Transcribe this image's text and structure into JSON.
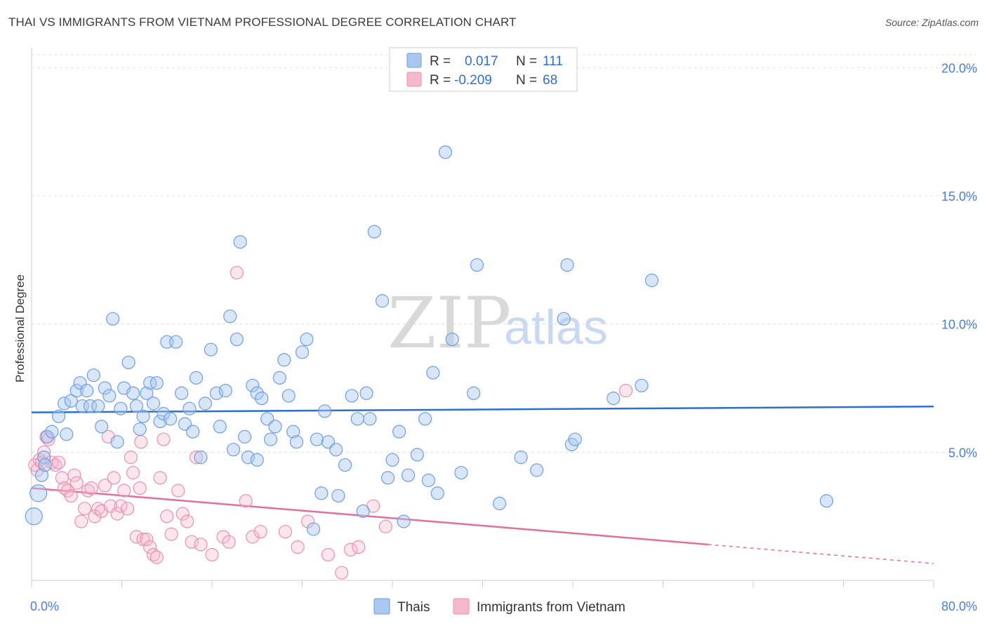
{
  "header": {
    "title": "THAI VS IMMIGRANTS FROM VIETNAM PROFESSIONAL DEGREE CORRELATION CHART",
    "source": "Source: ZipAtlas.com"
  },
  "watermark": {
    "zip": "ZIP",
    "atlas": "atlas"
  },
  "colors": {
    "blue_fill": "#a9c8f0",
    "blue_stroke": "#6e9fe0",
    "blue_line": "#2c6fcf",
    "pink_fill": "#f6b8cc",
    "pink_stroke": "#ec8fae",
    "pink_line": "#e3709a",
    "grid": "#dddddd",
    "tick_text": "#4a7fd4"
  },
  "legend": {
    "rows": [
      {
        "r_label": "R =",
        "r_value": "0.017",
        "n_label": "N =",
        "n_value": "111"
      },
      {
        "r_label": "R =",
        "r_value": "-0.209",
        "n_label": "N =",
        "n_value": "68"
      }
    ]
  },
  "bottom_legend": {
    "series1": "Thais",
    "series2": "Immigrants from Vietnam"
  },
  "chart_data": {
    "type": "scatter",
    "title": "THAI VS IMMIGRANTS FROM VIETNAM PROFESSIONAL DEGREE CORRELATION CHART",
    "xlabel": "",
    "ylabel": "Professional Degree",
    "xlim": [
      0,
      80
    ],
    "ylim": [
      0,
      20.5
    ],
    "x_tick_labels": [
      "0.0%",
      "80.0%"
    ],
    "y_ticks": [
      5,
      10,
      15,
      20
    ],
    "y_tick_labels": [
      "5.0%",
      "10.0%",
      "15.0%",
      "20.0%"
    ],
    "legend_position": "bottom",
    "series": [
      {
        "name": "Thais",
        "r": 0.017,
        "n": 111,
        "trend": {
          "x": [
            0,
            80
          ],
          "y": [
            6.55,
            6.78
          ]
        },
        "points": [
          [
            0.2,
            2.5
          ],
          [
            0.6,
            3.4
          ],
          [
            0.9,
            4.1
          ],
          [
            1.1,
            4.8
          ],
          [
            1.4,
            5.6
          ],
          [
            1.8,
            5.8
          ],
          [
            2.4,
            6.4
          ],
          [
            2.9,
            6.9
          ],
          [
            3.1,
            5.7
          ],
          [
            3.5,
            7.0
          ],
          [
            4.0,
            7.4
          ],
          [
            4.3,
            7.7
          ],
          [
            4.5,
            6.8
          ],
          [
            4.9,
            7.4
          ],
          [
            5.2,
            6.8
          ],
          [
            5.5,
            8.0
          ],
          [
            5.9,
            6.8
          ],
          [
            6.2,
            6.0
          ],
          [
            6.5,
            7.5
          ],
          [
            6.9,
            7.2
          ],
          [
            7.2,
            10.2
          ],
          [
            7.6,
            5.4
          ],
          [
            7.9,
            6.7
          ],
          [
            8.2,
            7.5
          ],
          [
            8.6,
            8.5
          ],
          [
            9.0,
            7.3
          ],
          [
            9.3,
            6.8
          ],
          [
            9.6,
            5.9
          ],
          [
            9.9,
            6.4
          ],
          [
            10.2,
            7.3
          ],
          [
            10.5,
            7.7
          ],
          [
            10.8,
            6.9
          ],
          [
            11.1,
            7.7
          ],
          [
            11.4,
            6.2
          ],
          [
            11.7,
            6.5
          ],
          [
            12.0,
            9.3
          ],
          [
            12.3,
            6.3
          ],
          [
            12.8,
            9.3
          ],
          [
            13.3,
            7.3
          ],
          [
            13.6,
            6.1
          ],
          [
            14.0,
            6.7
          ],
          [
            14.3,
            5.8
          ],
          [
            14.6,
            7.9
          ],
          [
            15.0,
            4.8
          ],
          [
            15.4,
            6.9
          ],
          [
            15.9,
            9.0
          ],
          [
            16.4,
            7.3
          ],
          [
            16.7,
            6.0
          ],
          [
            17.2,
            7.4
          ],
          [
            17.6,
            10.3
          ],
          [
            17.9,
            5.1
          ],
          [
            18.2,
            9.4
          ],
          [
            18.5,
            13.2
          ],
          [
            18.9,
            5.6
          ],
          [
            19.2,
            4.8
          ],
          [
            19.6,
            7.6
          ],
          [
            20.0,
            7.3
          ],
          [
            20.4,
            7.1
          ],
          [
            20.9,
            6.3
          ],
          [
            21.2,
            5.5
          ],
          [
            21.6,
            6.0
          ],
          [
            22.0,
            7.9
          ],
          [
            22.4,
            8.6
          ],
          [
            22.8,
            7.2
          ],
          [
            23.2,
            5.8
          ],
          [
            23.5,
            5.4
          ],
          [
            24.0,
            8.9
          ],
          [
            24.4,
            9.4
          ],
          [
            25.0,
            2.0
          ],
          [
            25.3,
            5.5
          ],
          [
            25.7,
            3.4
          ],
          [
            26.0,
            6.6
          ],
          [
            26.3,
            5.4
          ],
          [
            27.0,
            5.1
          ],
          [
            27.2,
            3.3
          ],
          [
            27.8,
            4.5
          ],
          [
            28.4,
            7.2
          ],
          [
            28.9,
            6.3
          ],
          [
            29.4,
            2.7
          ],
          [
            30.0,
            6.3
          ],
          [
            30.4,
            13.6
          ],
          [
            31.1,
            10.9
          ],
          [
            31.6,
            4.0
          ],
          [
            32.0,
            4.7
          ],
          [
            32.6,
            5.8
          ],
          [
            33.0,
            2.3
          ],
          [
            33.4,
            4.1
          ],
          [
            34.2,
            4.9
          ],
          [
            34.9,
            6.3
          ],
          [
            35.2,
            3.9
          ],
          [
            35.6,
            8.1
          ],
          [
            36.0,
            3.4
          ],
          [
            36.7,
            16.7
          ],
          [
            37.3,
            9.4
          ],
          [
            38.1,
            4.2
          ],
          [
            39.2,
            7.3
          ],
          [
            39.5,
            12.3
          ],
          [
            41.5,
            3.0
          ],
          [
            43.4,
            4.8
          ],
          [
            44.8,
            4.3
          ],
          [
            47.2,
            10.2
          ],
          [
            47.5,
            12.3
          ],
          [
            47.9,
            5.3
          ],
          [
            48.2,
            5.5
          ],
          [
            51.6,
            7.1
          ],
          [
            54.1,
            7.6
          ],
          [
            55.0,
            11.7
          ],
          [
            70.5,
            3.1
          ],
          [
            29.7,
            7.3
          ],
          [
            20.0,
            4.7
          ],
          [
            1.2,
            4.5
          ]
        ]
      },
      {
        "name": "Immigrants from Vietnam",
        "r": -0.209,
        "n": 68,
        "trend": {
          "x": [
            0,
            60
          ],
          "y": [
            3.6,
            1.4
          ]
        },
        "trend_dashed": {
          "x": [
            60,
            80
          ],
          "y": [
            1.4,
            0.66
          ]
        },
        "points": [
          [
            0.3,
            4.5
          ],
          [
            0.5,
            4.3
          ],
          [
            0.7,
            4.7
          ],
          [
            0.9,
            4.6
          ],
          [
            1.1,
            5.0
          ],
          [
            1.3,
            5.6
          ],
          [
            1.5,
            5.5
          ],
          [
            1.8,
            4.6
          ],
          [
            2.1,
            4.5
          ],
          [
            2.4,
            4.6
          ],
          [
            2.7,
            4.0
          ],
          [
            2.9,
            3.6
          ],
          [
            3.2,
            3.5
          ],
          [
            3.5,
            3.3
          ],
          [
            3.8,
            4.1
          ],
          [
            4.0,
            3.8
          ],
          [
            4.4,
            2.3
          ],
          [
            4.7,
            2.8
          ],
          [
            5.0,
            3.5
          ],
          [
            5.3,
            3.6
          ],
          [
            5.6,
            2.5
          ],
          [
            5.9,
            2.8
          ],
          [
            6.2,
            2.7
          ],
          [
            6.5,
            3.7
          ],
          [
            6.8,
            5.6
          ],
          [
            7.0,
            2.9
          ],
          [
            7.3,
            4.0
          ],
          [
            7.6,
            2.6
          ],
          [
            7.9,
            2.9
          ],
          [
            8.2,
            3.5
          ],
          [
            8.5,
            2.8
          ],
          [
            8.8,
            4.8
          ],
          [
            9.0,
            4.2
          ],
          [
            9.3,
            1.7
          ],
          [
            9.6,
            3.6
          ],
          [
            9.9,
            1.6
          ],
          [
            10.2,
            1.6
          ],
          [
            10.5,
            1.3
          ],
          [
            10.8,
            1.0
          ],
          [
            11.1,
            0.9
          ],
          [
            11.4,
            4.0
          ],
          [
            11.7,
            5.5
          ],
          [
            12.0,
            2.5
          ],
          [
            12.4,
            1.8
          ],
          [
            13.0,
            3.5
          ],
          [
            13.4,
            2.6
          ],
          [
            13.8,
            2.3
          ],
          [
            14.2,
            1.5
          ],
          [
            14.6,
            4.8
          ],
          [
            15.0,
            1.4
          ],
          [
            16.0,
            1.0
          ],
          [
            17.0,
            1.7
          ],
          [
            17.5,
            1.5
          ],
          [
            18.2,
            12.0
          ],
          [
            19.0,
            3.1
          ],
          [
            19.6,
            1.7
          ],
          [
            20.3,
            1.9
          ],
          [
            22.5,
            1.9
          ],
          [
            23.6,
            1.3
          ],
          [
            24.5,
            2.3
          ],
          [
            26.3,
            1.0
          ],
          [
            27.5,
            0.3
          ],
          [
            28.3,
            1.2
          ],
          [
            29.0,
            1.3
          ],
          [
            30.3,
            2.9
          ],
          [
            31.4,
            2.1
          ],
          [
            52.7,
            7.4
          ],
          [
            9.7,
            5.4
          ]
        ]
      }
    ]
  }
}
